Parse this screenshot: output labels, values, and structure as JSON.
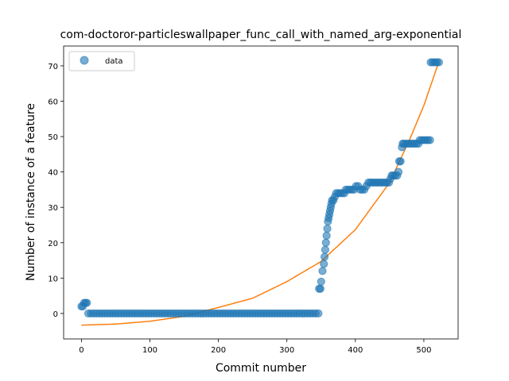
{
  "chart_data": {
    "type": "scatter",
    "title": "com-doctoror-particleswallpaper_func_call_with_named_arg-exponential",
    "xlabel": "Commit number",
    "ylabel": "Number of instance of a feature",
    "xlim": [
      -26,
      550
    ],
    "ylim": [
      -7.2,
      75.6
    ],
    "xticks": [
      0,
      100,
      200,
      300,
      400,
      500
    ],
    "yticks": [
      0,
      10,
      20,
      30,
      40,
      50,
      60,
      70
    ],
    "grid": false,
    "legend": {
      "position": "upper-left",
      "entries": [
        "data"
      ]
    },
    "colors": {
      "data": "#1f77b4",
      "fit": "#ff7f0e"
    },
    "series": [
      {
        "name": "data",
        "style": "markers",
        "points": [
          [
            0,
            2
          ],
          [
            2,
            2
          ],
          [
            4,
            3
          ],
          [
            6,
            3
          ],
          [
            8,
            3
          ],
          [
            10,
            0
          ],
          [
            14,
            0
          ],
          [
            18,
            0
          ],
          [
            22,
            0
          ],
          [
            26,
            0
          ],
          [
            30,
            0
          ],
          [
            34,
            0
          ],
          [
            38,
            0
          ],
          [
            42,
            0
          ],
          [
            46,
            0
          ],
          [
            50,
            0
          ],
          [
            54,
            0
          ],
          [
            58,
            0
          ],
          [
            62,
            0
          ],
          [
            66,
            0
          ],
          [
            70,
            0
          ],
          [
            74,
            0
          ],
          [
            78,
            0
          ],
          [
            82,
            0
          ],
          [
            86,
            0
          ],
          [
            90,
            0
          ],
          [
            94,
            0
          ],
          [
            98,
            0
          ],
          [
            102,
            0
          ],
          [
            106,
            0
          ],
          [
            110,
            0
          ],
          [
            114,
            0
          ],
          [
            118,
            0
          ],
          [
            122,
            0
          ],
          [
            126,
            0
          ],
          [
            130,
            0
          ],
          [
            134,
            0
          ],
          [
            138,
            0
          ],
          [
            142,
            0
          ],
          [
            146,
            0
          ],
          [
            150,
            0
          ],
          [
            154,
            0
          ],
          [
            158,
            0
          ],
          [
            162,
            0
          ],
          [
            166,
            0
          ],
          [
            170,
            0
          ],
          [
            174,
            0
          ],
          [
            178,
            0
          ],
          [
            182,
            0
          ],
          [
            186,
            0
          ],
          [
            190,
            0
          ],
          [
            194,
            0
          ],
          [
            198,
            0
          ],
          [
            202,
            0
          ],
          [
            206,
            0
          ],
          [
            210,
            0
          ],
          [
            214,
            0
          ],
          [
            218,
            0
          ],
          [
            222,
            0
          ],
          [
            226,
            0
          ],
          [
            230,
            0
          ],
          [
            234,
            0
          ],
          [
            238,
            0
          ],
          [
            242,
            0
          ],
          [
            246,
            0
          ],
          [
            250,
            0
          ],
          [
            254,
            0
          ],
          [
            258,
            0
          ],
          [
            262,
            0
          ],
          [
            266,
            0
          ],
          [
            270,
            0
          ],
          [
            274,
            0
          ],
          [
            278,
            0
          ],
          [
            282,
            0
          ],
          [
            286,
            0
          ],
          [
            290,
            0
          ],
          [
            294,
            0
          ],
          [
            298,
            0
          ],
          [
            302,
            0
          ],
          [
            306,
            0
          ],
          [
            310,
            0
          ],
          [
            314,
            0
          ],
          [
            318,
            0
          ],
          [
            322,
            0
          ],
          [
            326,
            0
          ],
          [
            330,
            0
          ],
          [
            334,
            0
          ],
          [
            338,
            0
          ],
          [
            342,
            0
          ],
          [
            346,
            0
          ],
          [
            347,
            7
          ],
          [
            349,
            7
          ],
          [
            350,
            9
          ],
          [
            352,
            12
          ],
          [
            354,
            14
          ],
          [
            355,
            16
          ],
          [
            356,
            18
          ],
          [
            357,
            20
          ],
          [
            358,
            22
          ],
          [
            359,
            24
          ],
          [
            360,
            26
          ],
          [
            361,
            27
          ],
          [
            362,
            28
          ],
          [
            363,
            29
          ],
          [
            364,
            30
          ],
          [
            365,
            31
          ],
          [
            366,
            32
          ],
          [
            368,
            32
          ],
          [
            370,
            33
          ],
          [
            372,
            34
          ],
          [
            375,
            34
          ],
          [
            378,
            34
          ],
          [
            381,
            34
          ],
          [
            384,
            34
          ],
          [
            386,
            35
          ],
          [
            389,
            35
          ],
          [
            392,
            35
          ],
          [
            395,
            35
          ],
          [
            398,
            35
          ],
          [
            401,
            36
          ],
          [
            404,
            36
          ],
          [
            407,
            35
          ],
          [
            410,
            35
          ],
          [
            413,
            35
          ],
          [
            416,
            36
          ],
          [
            419,
            37
          ],
          [
            422,
            37
          ],
          [
            425,
            37
          ],
          [
            428,
            37
          ],
          [
            431,
            37
          ],
          [
            434,
            37
          ],
          [
            437,
            37
          ],
          [
            440,
            37
          ],
          [
            443,
            37
          ],
          [
            446,
            37
          ],
          [
            449,
            37
          ],
          [
            451,
            38
          ],
          [
            453,
            39
          ],
          [
            455,
            39
          ],
          [
            458,
            39
          ],
          [
            461,
            39
          ],
          [
            463,
            40
          ],
          [
            464,
            43
          ],
          [
            466,
            43
          ],
          [
            468,
            47
          ],
          [
            469,
            48
          ],
          [
            471,
            48
          ],
          [
            474,
            48
          ],
          [
            477,
            48
          ],
          [
            480,
            48
          ],
          [
            483,
            48
          ],
          [
            486,
            48
          ],
          [
            489,
            48
          ],
          [
            492,
            48
          ],
          [
            494,
            49
          ],
          [
            497,
            49
          ],
          [
            500,
            49
          ],
          [
            503,
            49
          ],
          [
            506,
            49
          ],
          [
            509,
            49
          ],
          [
            510,
            71
          ],
          [
            513,
            71
          ],
          [
            516,
            71
          ],
          [
            519,
            71
          ],
          [
            522,
            71
          ]
        ]
      },
      {
        "name": "",
        "style": "line",
        "model": "exponential",
        "x_range": [
          0,
          522
        ],
        "points": [
          [
            0,
            -3.3
          ],
          [
            50,
            -3.0
          ],
          [
            100,
            -2.2
          ],
          [
            150,
            -0.8
          ],
          [
            200,
            1.7
          ],
          [
            250,
            4.3
          ],
          [
            300,
            9.0
          ],
          [
            350,
            14.7
          ],
          [
            400,
            23.7
          ],
          [
            450,
            37.0
          ],
          [
            480,
            49.5
          ],
          [
            500,
            58.8
          ],
          [
            522,
            71.2
          ]
        ]
      }
    ]
  }
}
